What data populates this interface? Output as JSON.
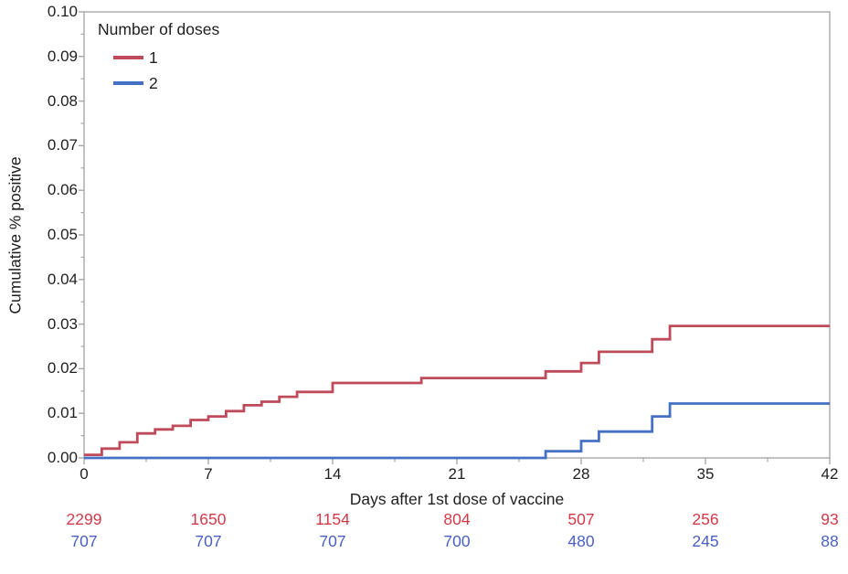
{
  "figure": {
    "background": "#ffffff",
    "frame_color": "#a7a7a7",
    "text_color": "#1f1f1f"
  },
  "chart_data": {
    "type": "line",
    "subtype": "step-cumulative-incidence",
    "title": "",
    "xlabel": "Days after 1st dose of vaccine",
    "ylabel": "Cumulative % positive",
    "xlim": [
      0,
      42
    ],
    "ylim": [
      0,
      0.1
    ],
    "x_ticks": [
      0,
      7,
      14,
      21,
      28,
      35,
      42
    ],
    "x_minor_interval": 3.5,
    "y_tick_interval": 0.01,
    "y_minor_interval": 0.005,
    "y_tick_labels": [
      "0.00",
      "0.01",
      "0.02",
      "0.03",
      "0.04",
      "0.05",
      "0.06",
      "0.07",
      "0.08",
      "0.09",
      "0.10"
    ],
    "grid": "off",
    "legend": {
      "position": "top-left-inside",
      "title": "Number of doses",
      "entries": [
        {
          "label": "1",
          "color": "#bf4a5a"
        },
        {
          "label": "2",
          "color": "#4471c4"
        }
      ]
    },
    "series": [
      {
        "name": "1",
        "color": "#bf4a5a",
        "steps": [
          [
            0,
            0.0007
          ],
          [
            1,
            0.0021
          ],
          [
            2,
            0.0035
          ],
          [
            3,
            0.0055
          ],
          [
            4,
            0.0064
          ],
          [
            5,
            0.0072
          ],
          [
            6,
            0.0085
          ],
          [
            7,
            0.0093
          ],
          [
            8,
            0.0105
          ],
          [
            9,
            0.0118
          ],
          [
            10,
            0.0126
          ],
          [
            11,
            0.0137
          ],
          [
            12,
            0.0148
          ],
          [
            14,
            0.0168
          ],
          [
            19,
            0.0179
          ],
          [
            26,
            0.0194
          ],
          [
            28,
            0.0213
          ],
          [
            29,
            0.0238
          ],
          [
            32,
            0.0266
          ],
          [
            33,
            0.0296
          ]
        ],
        "end_x": 42
      },
      {
        "name": "2",
        "color": "#4471c4",
        "steps": [
          [
            0,
            0.0
          ],
          [
            26,
            0.0015
          ],
          [
            28,
            0.0038
          ],
          [
            29,
            0.0059
          ],
          [
            32,
            0.0093
          ],
          [
            33,
            0.0122
          ]
        ],
        "end_x": 42
      }
    ],
    "at_risk_table": {
      "days": [
        0,
        7,
        14,
        21,
        28,
        35,
        42
      ],
      "rows": [
        {
          "group": "1",
          "color": "#d23a49",
          "values": [
            "2299",
            "1650",
            "1154",
            "804",
            "507",
            "256",
            "93"
          ]
        },
        {
          "group": "2",
          "color": "#4a5fc4",
          "values": [
            "707",
            "707",
            "707",
            "700",
            "480",
            "245",
            "88"
          ]
        }
      ]
    }
  }
}
